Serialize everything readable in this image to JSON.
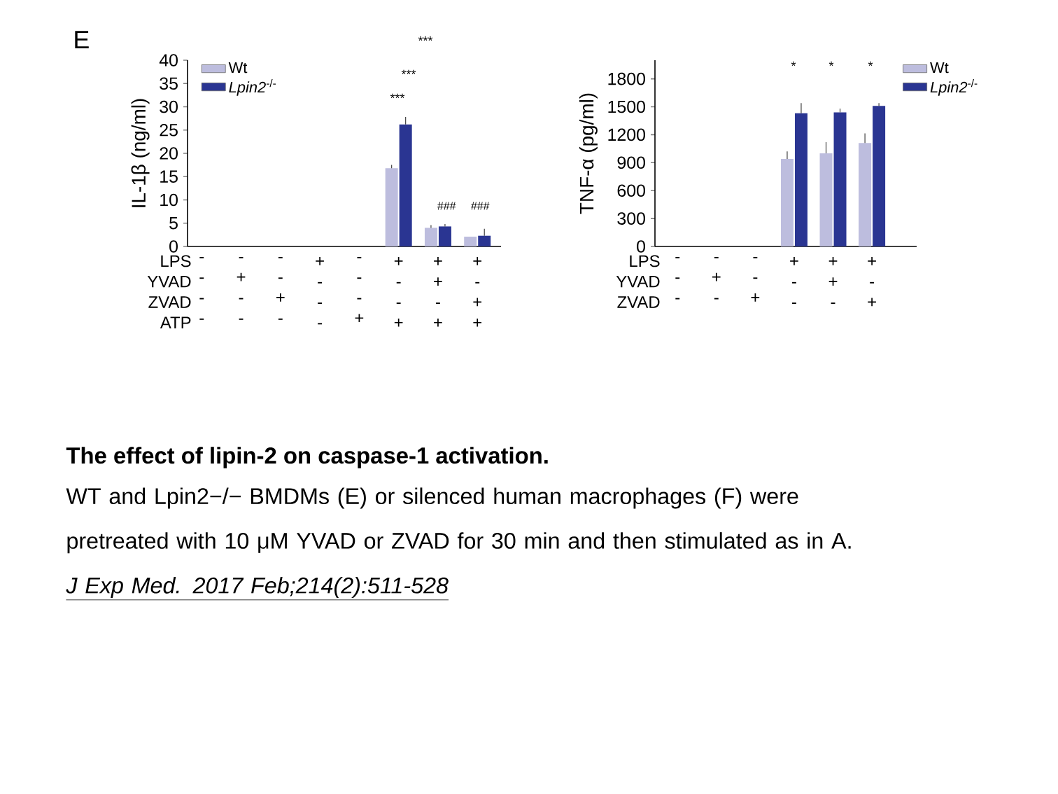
{
  "chart_data": [
    {
      "type": "bar",
      "ylabel": "IL-1β (ng/ml)",
      "categories": [
        "- - - -",
        "- + - -",
        "- - + -",
        "+ - - -",
        "- - - +",
        "+ - - +",
        "+ + - +",
        "+ - + +"
      ],
      "series": [
        {
          "name": "Wt",
          "color": "#bdbdde",
          "values": [
            0,
            0,
            0,
            0,
            0,
            16.8,
            4.0,
            2.1
          ],
          "errors": [
            null,
            null,
            null,
            null,
            null,
            [
              16.8,
              17.5
            ],
            [
              4.0,
              4.6
            ],
            null
          ]
        },
        {
          "name": "*Lpin2*$^{-/-}$",
          "color": "#2a3592",
          "values": [
            0,
            0,
            0,
            0,
            0,
            26.2,
            4.3,
            2.3
          ],
          "errors": [
            null,
            null,
            null,
            null,
            null,
            [
              26.2,
              27.8
            ],
            [
              4.3,
              4.8
            ],
            [
              2.3,
              3.8
            ]
          ]
        }
      ],
      "ylim": [
        0,
        40
      ],
      "yticks": [
        0,
        5,
        10,
        15,
        20,
        25,
        30,
        35,
        40
      ],
      "legend": "top left",
      "annotations": [
        "E",
        "LPS YVAD ZVAD ATP",
        "***",
        "***",
        "***",
        "###",
        "###"
      ]
    },
    {
      "type": "bar",
      "ylabel": "TNF-α (pg/ml)",
      "categories": [
        "- - -",
        "- + -",
        "- - +",
        "+ - -",
        "+ + -",
        "+ - +"
      ],
      "series": [
        {
          "name": "Wt",
          "color": "#bdbdde",
          "values": [
            0,
            0,
            0,
            940,
            1000,
            1110
          ],
          "errors": [
            null,
            null,
            null,
            [
              940,
              1020
            ],
            [
              1000,
              1120
            ],
            [
              1110,
              1215
            ]
          ]
        },
        {
          "name": "*Lpin2*$^{-/-}$",
          "color": "#2a3592",
          "values": [
            0,
            0,
            0,
            1430,
            1440,
            1510
          ],
          "errors": [
            null,
            null,
            null,
            [
              1430,
              1540
            ],
            [
              1440,
              1480
            ],
            [
              1510,
              1540
            ]
          ]
        }
      ],
      "ylim": [
        0,
        2000
      ],
      "yticks": [
        0,
        300,
        600,
        900,
        1200,
        1500,
        1800
      ],
      "legend": "top right",
      "annotations": [
        "LPS YVAD ZVAD",
        "*",
        "*",
        "*"
      ]
    },
    {
      "type": "other",
      "title": "The effect of lipin-2 on caspase-1 activation.",
      "annotations": [
        "WT and Lpin2−/− BMDMs (E) or silenced human macrophages (F) were pretreated with 10 μM YVAD or ZVAD for 30 min and then stimulated as in A.",
        "J Exp Med. 2017 Feb;214(2):511-528"
      ]
    }
  ]
}
